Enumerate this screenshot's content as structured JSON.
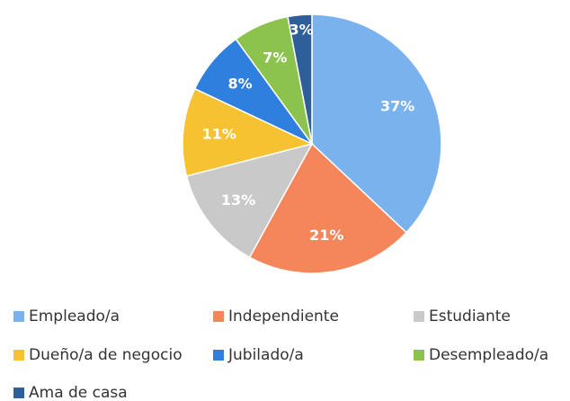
{
  "chart_data": {
    "type": "pie",
    "categories": [
      "Empleado/a",
      "Independiente",
      "Estudiante",
      "Dueño/a de negocio",
      "Jubilado/a",
      "Desempleado/a",
      "Ama de casa"
    ],
    "values": [
      37,
      21,
      13,
      11,
      8,
      7,
      3
    ],
    "value_labels": [
      "37%",
      "21%",
      "13%",
      "11%",
      "8%",
      "7%",
      "3%"
    ],
    "colors": [
      "#7ab2ee",
      "#f5865a",
      "#c9c9c9",
      "#f7c232",
      "#2f80de",
      "#8cc34c",
      "#2e5f9b"
    ],
    "legend": "bottom"
  }
}
